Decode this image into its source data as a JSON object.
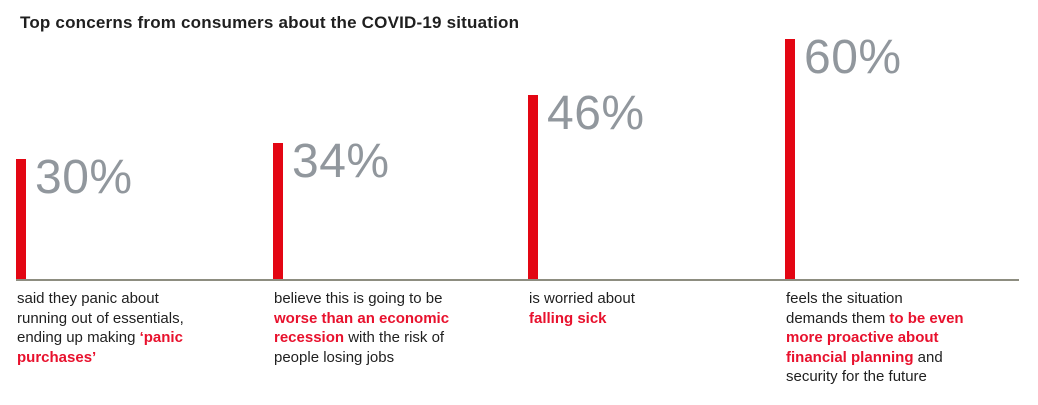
{
  "title": "Top concerns from consumers about the COVID-19 situation",
  "colors": {
    "bar_red": "#e30613",
    "emphasis_red": "#e8112d",
    "percent_gray": "#91979d",
    "baseline_gray": "#8d8d80",
    "text_dark": "#1f1f1f"
  },
  "chart_data": {
    "type": "bar",
    "title": "Top concerns from consumers about the COVID-19 situation",
    "unit": "%",
    "ylim": [
      0,
      62
    ],
    "grid": false,
    "legend": false,
    "value_labels_shown": true,
    "bar_color": "#e30613",
    "categories": [
      "panic purchases",
      "worse than an economic recession",
      "falling sick",
      "proactive financial planning"
    ],
    "values": [
      30,
      34,
      46,
      60
    ],
    "bars": [
      {
        "value": 30,
        "label": "30%",
        "description_lines": [
          [
            {
              "t": "said they panic about",
              "em": false
            }
          ],
          [
            {
              "t": "running out of essentials,",
              "em": false
            }
          ],
          [
            {
              "t": "ending up making ",
              "em": false
            },
            {
              "t": "‘panic",
              "em": true
            }
          ],
          [
            {
              "t": "purchases’",
              "em": true
            }
          ]
        ]
      },
      {
        "value": 34,
        "label": "34%",
        "description_lines": [
          [
            {
              "t": "believe this is going to be",
              "em": false
            }
          ],
          [
            {
              "t": "worse than an economic",
              "em": true
            }
          ],
          [
            {
              "t": "recession",
              "em": true
            },
            {
              "t": " with the risk of",
              "em": false
            }
          ],
          [
            {
              "t": "people losing jobs",
              "em": false
            }
          ]
        ]
      },
      {
        "value": 46,
        "label": "46%",
        "description_lines": [
          [
            {
              "t": "is worried about",
              "em": false
            }
          ],
          [
            {
              "t": "falling sick",
              "em": true
            }
          ]
        ]
      },
      {
        "value": 60,
        "label": "60%",
        "description_lines": [
          [
            {
              "t": "feels the situation",
              "em": false
            }
          ],
          [
            {
              "t": "demands them ",
              "em": false
            },
            {
              "t": "to be even",
              "em": true
            }
          ],
          [
            {
              "t": "more proactive about",
              "em": true
            }
          ],
          [
            {
              "t": "financial planning",
              "em": true
            },
            {
              "t": " and",
              "em": false
            }
          ],
          [
            {
              "t": "security for the future",
              "em": false
            }
          ]
        ]
      }
    ]
  }
}
